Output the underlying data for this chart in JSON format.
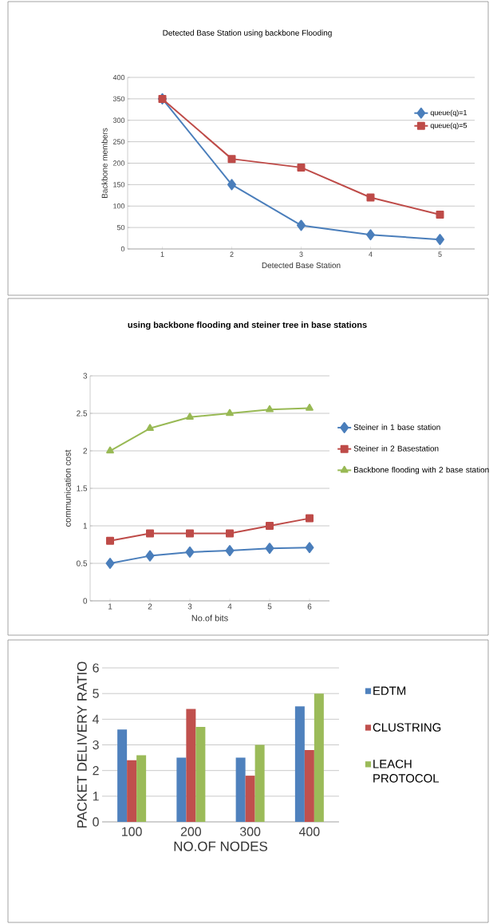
{
  "chart_data": [
    {
      "type": "line",
      "title": "Detected Base Station using backbone Flooding",
      "xlabel": "Detected Base Station",
      "ylabel": "Backbone members",
      "categories": [
        "1",
        "2",
        "3",
        "4",
        "5"
      ],
      "ylim": [
        0,
        400
      ],
      "yticks": [
        0,
        50,
        100,
        150,
        200,
        250,
        300,
        350,
        400
      ],
      "grid": "y",
      "legend": "top right",
      "series": [
        {
          "name": "queue(q)=1",
          "color": "#4a7ebb",
          "marker": "diamond",
          "values": [
            350,
            150,
            55,
            33,
            22
          ]
        },
        {
          "name": "queue(q)=5",
          "color": "#be4b48",
          "marker": "square",
          "values": [
            350,
            210,
            190,
            120,
            80
          ]
        }
      ]
    },
    {
      "type": "line",
      "title": "using backbone flooding and steiner tree in base stations",
      "xlabel": "No.of bits",
      "ylabel": "communication cost",
      "categories": [
        "1",
        "2",
        "3",
        "4",
        "5",
        "6"
      ],
      "ylim": [
        0,
        3
      ],
      "yticks": [
        0,
        0.5,
        1,
        1.5,
        2,
        2.5,
        3
      ],
      "grid": "y",
      "legend": "right",
      "series": [
        {
          "name": "Steiner in 1 base station",
          "color": "#4a7ebb",
          "marker": "diamond",
          "values": [
            0.5,
            0.6,
            0.65,
            0.67,
            0.7,
            0.71
          ]
        },
        {
          "name": "Steiner in 2 Basestation",
          "color": "#be4b48",
          "marker": "square",
          "values": [
            0.8,
            0.9,
            0.9,
            0.9,
            1.0,
            1.1
          ]
        },
        {
          "name": "Backbone flooding with 2 base station",
          "color": "#98b954",
          "marker": "triangle",
          "values": [
            2.0,
            2.3,
            2.45,
            2.5,
            2.55,
            2.57
          ]
        }
      ]
    },
    {
      "type": "bar",
      "xlabel": "NO.OF NODES",
      "ylabel": "PACKET DELIVERY RATIO",
      "categories": [
        "100",
        "200",
        "300",
        "400"
      ],
      "ylim": [
        0,
        6
      ],
      "yticks": [
        0,
        1,
        2,
        3,
        4,
        5,
        6
      ],
      "grid": "y",
      "legend": "right",
      "series": [
        {
          "name": "EDTM",
          "color": "#4f81bd",
          "values": [
            3.6,
            2.5,
            2.5,
            4.5
          ]
        },
        {
          "name": "CLUSTRING",
          "color": "#c0504d",
          "values": [
            2.4,
            4.4,
            1.8,
            2.8
          ]
        },
        {
          "name": "LEACH PROTOCOL",
          "color": "#9bbb59",
          "values": [
            2.6,
            3.7,
            3.0,
            5.0
          ]
        }
      ]
    }
  ]
}
